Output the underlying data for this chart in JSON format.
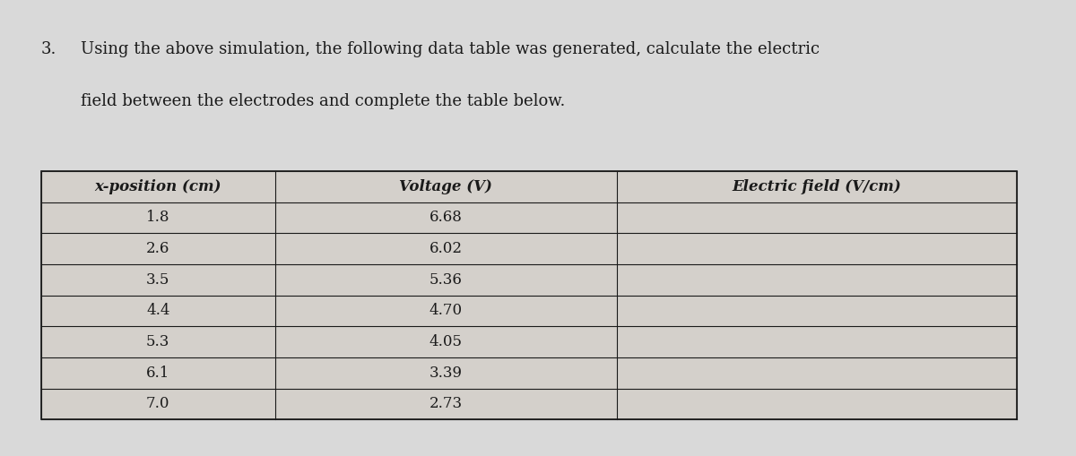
{
  "question_number": "3.",
  "question_text_line1": "Using the above simulation, the following data table was generated, calculate the electric",
  "question_text_line2": "field between the electrodes and complete the table below.",
  "col_headers": [
    "x-position (cm)",
    "Voltage (V)",
    "Electric field (V/cm)"
  ],
  "x_positions": [
    "1.8",
    "2.6",
    "3.5",
    "4.4",
    "5.3",
    "6.1",
    "7.0"
  ],
  "voltages": [
    "6.68",
    "6.02",
    "5.36",
    "4.70",
    "4.05",
    "3.39",
    "2.73"
  ],
  "electric_fields": [
    "",
    "",
    "",
    "",
    "",
    "",
    ""
  ],
  "bg_color": "#d9d9d9",
  "table_bg": "#d4d0cb",
  "text_color": "#1a1a1a",
  "header_style": "italic",
  "font_family": "serif",
  "fig_width": 12.0,
  "fig_height": 5.09,
  "dpi": 100
}
